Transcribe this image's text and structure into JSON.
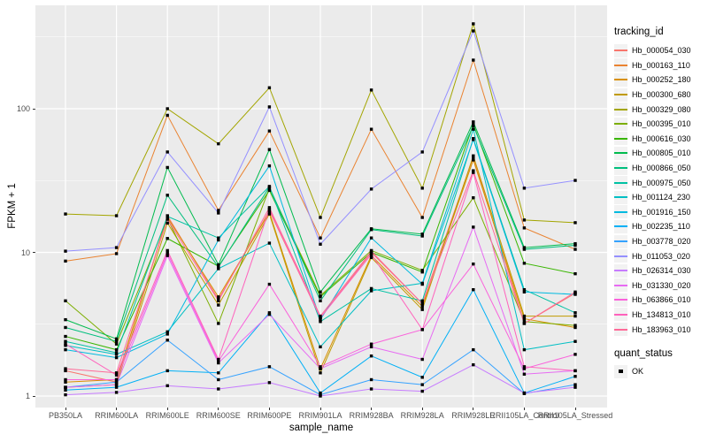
{
  "chart_data": {
    "type": "line",
    "title": "",
    "xlabel": "sample_name",
    "ylabel": "FPKM + 1",
    "y_scale": "log10",
    "y_ticks": [
      1,
      10,
      100
    ],
    "y_minor_ticks": [
      3.1623,
      31.623,
      316.23
    ],
    "ylim": [
      0.83,
      525
    ],
    "grid": "on",
    "legend_position": "right",
    "point_shape": "filled-black-square",
    "categories": [
      "PB350LA",
      "RRIM600LA",
      "RRIM600LE",
      "RRIM600SE",
      "RRIM600PE",
      "RRIM901LA",
      "RRIM928BA",
      "RRIM928LA",
      "RRIM928LE",
      "RRII105LA_Control",
      "RRII105LA_Stressed"
    ],
    "series": [
      {
        "name": "Hb_000054_030",
        "color": "#F8766D",
        "values": [
          1.5,
          1.25,
          18,
          4.7,
          19.5,
          3.5,
          10,
          4.4,
          46,
          3.2,
          5.2
        ]
      },
      {
        "name": "Hb_000163_110",
        "color": "#EA8331",
        "values": [
          8.7,
          9.8,
          90,
          19.6,
          70,
          12.6,
          72,
          17.5,
          218,
          14.8,
          10.5
        ]
      },
      {
        "name": "Hb_000252_180",
        "color": "#D89000",
        "values": [
          1.25,
          1.3,
          17.5,
          4.9,
          19,
          1.55,
          9.5,
          4.2,
          44,
          3.45,
          3.0
        ]
      },
      {
        "name": "Hb_000300_680",
        "color": "#C09B00",
        "values": [
          1.15,
          1.2,
          16,
          4.3,
          18.5,
          1.45,
          9.2,
          4.0,
          47,
          3.6,
          3.6
        ]
      },
      {
        "name": "Hb_000329_080",
        "color": "#A3A500",
        "values": [
          18.5,
          18,
          100,
          57,
          140,
          17.5,
          135,
          28,
          390,
          16.8,
          16.1
        ]
      },
      {
        "name": "Hb_000395_010",
        "color": "#7CAE00",
        "values": [
          4.6,
          2.3,
          17.2,
          3.2,
          28,
          5.0,
          10.3,
          7.5,
          24,
          3.3,
          3.1
        ]
      },
      {
        "name": "Hb_000616_030",
        "color": "#39B600",
        "values": [
          2.6,
          2.1,
          12.5,
          8.0,
          27,
          4.9,
          10.0,
          7.3,
          78,
          8.4,
          7.1
        ]
      },
      {
        "name": "Hb_000805_010",
        "color": "#00BB4E",
        "values": [
          3.4,
          2.5,
          39,
          8.2,
          52,
          5.3,
          14.6,
          13.4,
          81,
          10.8,
          11.5
        ]
      },
      {
        "name": "Hb_000866_050",
        "color": "#00BF7D",
        "values": [
          3.0,
          2.4,
          25,
          7.9,
          28.5,
          4.6,
          14.4,
          13.0,
          76,
          10.5,
          11.2
        ]
      },
      {
        "name": "Hb_000975_050",
        "color": "#00C1A3",
        "values": [
          2.4,
          2.0,
          17.8,
          12.6,
          28.8,
          3.3,
          5.6,
          4.6,
          62,
          5.5,
          3.8
        ]
      },
      {
        "name": "Hb_001124_230",
        "color": "#00BFC4",
        "values": [
          2.25,
          1.95,
          2.8,
          7.7,
          11.6,
          2.2,
          5.4,
          6.1,
          72,
          2.1,
          2.4
        ]
      },
      {
        "name": "Hb_001916_150",
        "color": "#00BAE0",
        "values": [
          2.1,
          1.85,
          2.7,
          12.2,
          40,
          3.4,
          12.6,
          6.0,
          61,
          5.3,
          5.1
        ]
      },
      {
        "name": "Hb_002235_110",
        "color": "#00B0F6",
        "values": [
          1.1,
          1.15,
          1.5,
          1.45,
          3.8,
          1.05,
          1.9,
          1.35,
          5.5,
          1.05,
          1.37
        ]
      },
      {
        "name": "Hb_003778_020",
        "color": "#35A2FF",
        "values": [
          1.15,
          1.25,
          2.45,
          1.3,
          1.6,
          1.02,
          1.3,
          1.2,
          2.1,
          1.04,
          1.2
        ]
      },
      {
        "name": "Hb_011053_020",
        "color": "#9590FF",
        "values": [
          10.2,
          10.8,
          50,
          18.8,
          103,
          11.4,
          27.6,
          50,
          348,
          28,
          31.7
        ]
      },
      {
        "name": "Hb_026314_030",
        "color": "#C77CFF",
        "values": [
          1.02,
          1.06,
          1.18,
          1.12,
          1.24,
          1.0,
          1.12,
          1.08,
          1.65,
          1.05,
          1.15
        ]
      },
      {
        "name": "Hb_031330_020",
        "color": "#E76BF3",
        "values": [
          1.15,
          1.2,
          9.5,
          1.7,
          3.7,
          1.55,
          2.2,
          1.8,
          15,
          1.42,
          1.5
        ]
      },
      {
        "name": "Hb_063866_010",
        "color": "#FA62DB",
        "values": [
          1.3,
          1.3,
          9.9,
          1.75,
          6.0,
          1.6,
          2.3,
          2.9,
          8.3,
          1.55,
          1.95
        ]
      },
      {
        "name": "Hb_134813_010",
        "color": "#FF62BC",
        "values": [
          2.3,
          1.4,
          10.3,
          1.8,
          20,
          3.5,
          9.7,
          2.9,
          36,
          1.6,
          1.5
        ]
      },
      {
        "name": "Hb_183963_010",
        "color": "#FF6A98",
        "values": [
          1.55,
          1.45,
          17,
          4.6,
          20.5,
          3.6,
          10.2,
          4.4,
          37,
          3.2,
          5.3
        ]
      }
    ]
  },
  "legend": {
    "tracking_title": "tracking_id",
    "quant_title": "quant_status",
    "quant_label": "OK"
  },
  "theme": {
    "panel_bg": "#EBEBEB",
    "grid": "#FFFFFF",
    "axis_text": "#4D4D4D",
    "text": "#000000",
    "legend_key_bg": "#F2F2F2",
    "point_color": "#000000"
  }
}
